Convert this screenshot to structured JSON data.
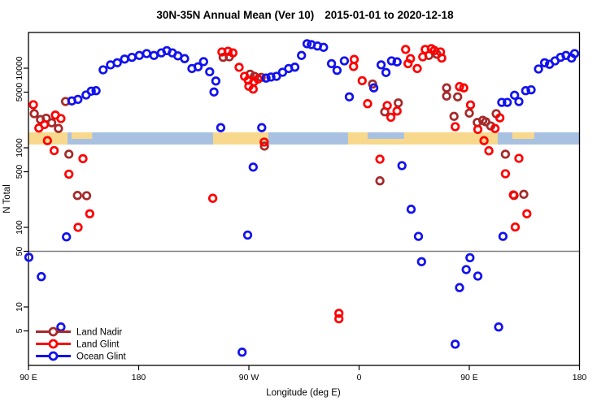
{
  "title": {
    "main": "30N-35N Annual Mean (Ver 10)",
    "dates": "2015-01-01 to 2020-12-18"
  },
  "chart_data": {
    "type": "scatter",
    "xlabel": "Longitude (deg E)",
    "ylabel": "N Total",
    "x_axis": {
      "start_deg_east": 90,
      "span_deg": 450,
      "ticks": [
        90,
        180,
        270,
        360,
        450,
        540
      ],
      "tick_labels": [
        "90 E",
        "180",
        "90 W",
        "0",
        "90 E",
        "180"
      ]
    },
    "y_axis": {
      "scale": "log",
      "ticks": [
        5,
        10,
        50,
        100,
        500,
        1000,
        5000,
        10000
      ],
      "tick_labels": [
        "5",
        "10",
        "50",
        "100",
        "500",
        "1000",
        "5000",
        "10000"
      ]
    },
    "reference_line": {
      "value": 50,
      "color": "#7F7F7F"
    },
    "map_strip": {
      "ocean_color": "#A9C1E1",
      "land_color": "#F8D88C",
      "n_band": [
        1100,
        1600
      ],
      "land_segments": [
        {
          "lon_from": 90,
          "lon_to": 121.9,
          "cover": "full"
        },
        {
          "lon_from": 125.2,
          "lon_to": 142.0,
          "cover": "top"
        },
        {
          "lon_from": 240.8,
          "lon_to": 285.9,
          "cover": "full"
        },
        {
          "lon_from": 351.0,
          "lon_to": 473.2,
          "cover": "full"
        },
        {
          "lon_from": 485.1,
          "lon_to": 503.0,
          "cover": "top"
        }
      ],
      "ocean_patches": [
        {
          "lon_from": 367.0,
          "lon_to": 396.8,
          "cover": "top"
        }
      ]
    },
    "legend": {
      "entries": [
        "Land Nadir",
        "Land Glint",
        "Ocean Glint"
      ]
    },
    "series": [
      {
        "name": "Land Nadir",
        "color": "#A52A2A",
        "points": [
          [
            94.7,
            2680
          ],
          [
            99.8,
            2260
          ],
          [
            104.5,
            2350
          ],
          [
            109,
            2060
          ],
          [
            114.5,
            1750
          ],
          [
            120.3,
            3820
          ],
          [
            123,
            830
          ],
          [
            130,
            252
          ],
          [
            137.5,
            250
          ],
          [
            249,
            13700
          ],
          [
            254,
            13900
          ],
          [
            271,
            8400
          ],
          [
            274.5,
            7900
          ],
          [
            280,
            7670
          ],
          [
            282.7,
            1050
          ],
          [
            371,
            6330
          ],
          [
            381,
            2830
          ],
          [
            392,
            3660
          ],
          [
            377,
            384
          ],
          [
            417,
            14450
          ],
          [
            423.5,
            15000
          ],
          [
            431.5,
            5660
          ],
          [
            431.5,
            4470
          ],
          [
            440.5,
            4360
          ],
          [
            437.5,
            2480
          ],
          [
            450,
            2730
          ],
          [
            456.5,
            2080
          ],
          [
            461,
            2210
          ],
          [
            463.5,
            2120
          ],
          [
            467.5,
            1880
          ],
          [
            472,
            2680
          ],
          [
            479.5,
            830
          ],
          [
            486.5,
            252
          ],
          [
            494.5,
            260
          ]
        ]
      },
      {
        "name": "Land Glint",
        "color": "#FF0000",
        "points": [
          [
            94,
            3470
          ],
          [
            98.5,
            1770
          ],
          [
            103,
            1960
          ],
          [
            105.5,
            1230
          ],
          [
            112,
            2570
          ],
          [
            116.5,
            2330
          ],
          [
            111,
            920
          ],
          [
            123,
            466
          ],
          [
            130.5,
            100
          ],
          [
            134.5,
            730
          ],
          [
            140,
            148
          ],
          [
            240.5,
            232
          ],
          [
            248,
            16000
          ],
          [
            253,
            16300
          ],
          [
            257,
            15600
          ],
          [
            262,
            10260
          ],
          [
            266.5,
            7900
          ],
          [
            269.5,
            7070
          ],
          [
            270,
            5930
          ],
          [
            273.5,
            5470
          ],
          [
            274,
            6750
          ],
          [
            277.5,
            7300
          ],
          [
            282.5,
            1180
          ],
          [
            343.5,
            8.3
          ],
          [
            343.5,
            7.1
          ],
          [
            356,
            12900
          ],
          [
            355.5,
            10500
          ],
          [
            362.5,
            6970
          ],
          [
            367,
            3580
          ],
          [
            377,
            720
          ],
          [
            383,
            3390
          ],
          [
            386,
            2420
          ],
          [
            391,
            2900
          ],
          [
            398,
            17200
          ],
          [
            400,
            11400
          ],
          [
            402,
            13200
          ],
          [
            407.5,
            9900
          ],
          [
            412,
            13900
          ],
          [
            414,
            17200
          ],
          [
            419,
            17600
          ],
          [
            421.5,
            16700
          ],
          [
            426.5,
            16000
          ],
          [
            427.5,
            13400
          ],
          [
            442,
            5870
          ],
          [
            445.5,
            5660
          ],
          [
            451,
            3450
          ],
          [
            438.5,
            1840
          ],
          [
            457,
            1700
          ],
          [
            462,
            1230
          ],
          [
            466,
            916
          ],
          [
            471,
            1750
          ],
          [
            475,
            2380
          ],
          [
            479.5,
            471
          ],
          [
            486,
            256
          ],
          [
            490.5,
            737
          ],
          [
            487.5,
            101
          ],
          [
            497,
            148
          ]
        ]
      },
      {
        "name": "Ocean Glint",
        "color": "#1212EE",
        "points": [
          [
            90.3,
            42
          ],
          [
            100.5,
            24
          ],
          [
            116.5,
            5.6
          ],
          [
            121,
            76
          ],
          [
            125.4,
            3880
          ],
          [
            130.4,
            4060
          ],
          [
            137,
            4610
          ],
          [
            141.3,
            5140
          ],
          [
            145.2,
            5220
          ],
          [
            151,
            9530
          ],
          [
            157,
            11000
          ],
          [
            162.5,
            11700
          ],
          [
            168.5,
            13000
          ],
          [
            174.5,
            13700
          ],
          [
            180.5,
            14450
          ],
          [
            186.5,
            15250
          ],
          [
            192.5,
            14450
          ],
          [
            198.5,
            15600
          ],
          [
            203,
            16600
          ],
          [
            207.5,
            15600
          ],
          [
            212,
            14300
          ],
          [
            217.5,
            13200
          ],
          [
            223.5,
            9900
          ],
          [
            228.5,
            10400
          ],
          [
            233,
            12100
          ],
          [
            238,
            9020
          ],
          [
            241.5,
            5020
          ],
          [
            243,
            6900
          ],
          [
            247,
            1790
          ],
          [
            264.5,
            2.7
          ],
          [
            269,
            80
          ],
          [
            273.5,
            572
          ],
          [
            280.5,
            1790
          ],
          [
            284,
            7500
          ],
          [
            288,
            7740
          ],
          [
            292.5,
            7900
          ],
          [
            297.5,
            8900
          ],
          [
            302.5,
            9900
          ],
          [
            307.5,
            10300
          ],
          [
            313,
            14450
          ],
          [
            317.5,
            20300
          ],
          [
            321,
            19800
          ],
          [
            326,
            19000
          ],
          [
            331,
            18300
          ],
          [
            337.5,
            11400
          ],
          [
            342,
            9400
          ],
          [
            348,
            12350
          ],
          [
            352,
            4360
          ],
          [
            372,
            5660
          ],
          [
            378,
            11000
          ],
          [
            382,
            8830
          ],
          [
            386.5,
            12350
          ],
          [
            391,
            12000
          ],
          [
            395,
            596
          ],
          [
            402.5,
            169
          ],
          [
            408.5,
            77
          ],
          [
            411,
            37
          ],
          [
            438.5,
            3.4
          ],
          [
            442,
            17.5
          ],
          [
            447.5,
            29.5
          ],
          [
            450.5,
            41.5
          ],
          [
            457,
            24.4
          ],
          [
            474,
            5.6
          ],
          [
            477.5,
            77
          ],
          [
            476.5,
            3720
          ],
          [
            481,
            3720
          ],
          [
            487,
            4570
          ],
          [
            490.5,
            3810
          ],
          [
            496,
            5220
          ],
          [
            500.5,
            5350
          ],
          [
            506.5,
            9760
          ],
          [
            511.5,
            11700
          ],
          [
            515.5,
            11200
          ],
          [
            520,
            12350
          ],
          [
            524.5,
            13700
          ],
          [
            529,
            14450
          ],
          [
            533.5,
            13400
          ],
          [
            536,
            15250
          ]
        ]
      }
    ]
  }
}
